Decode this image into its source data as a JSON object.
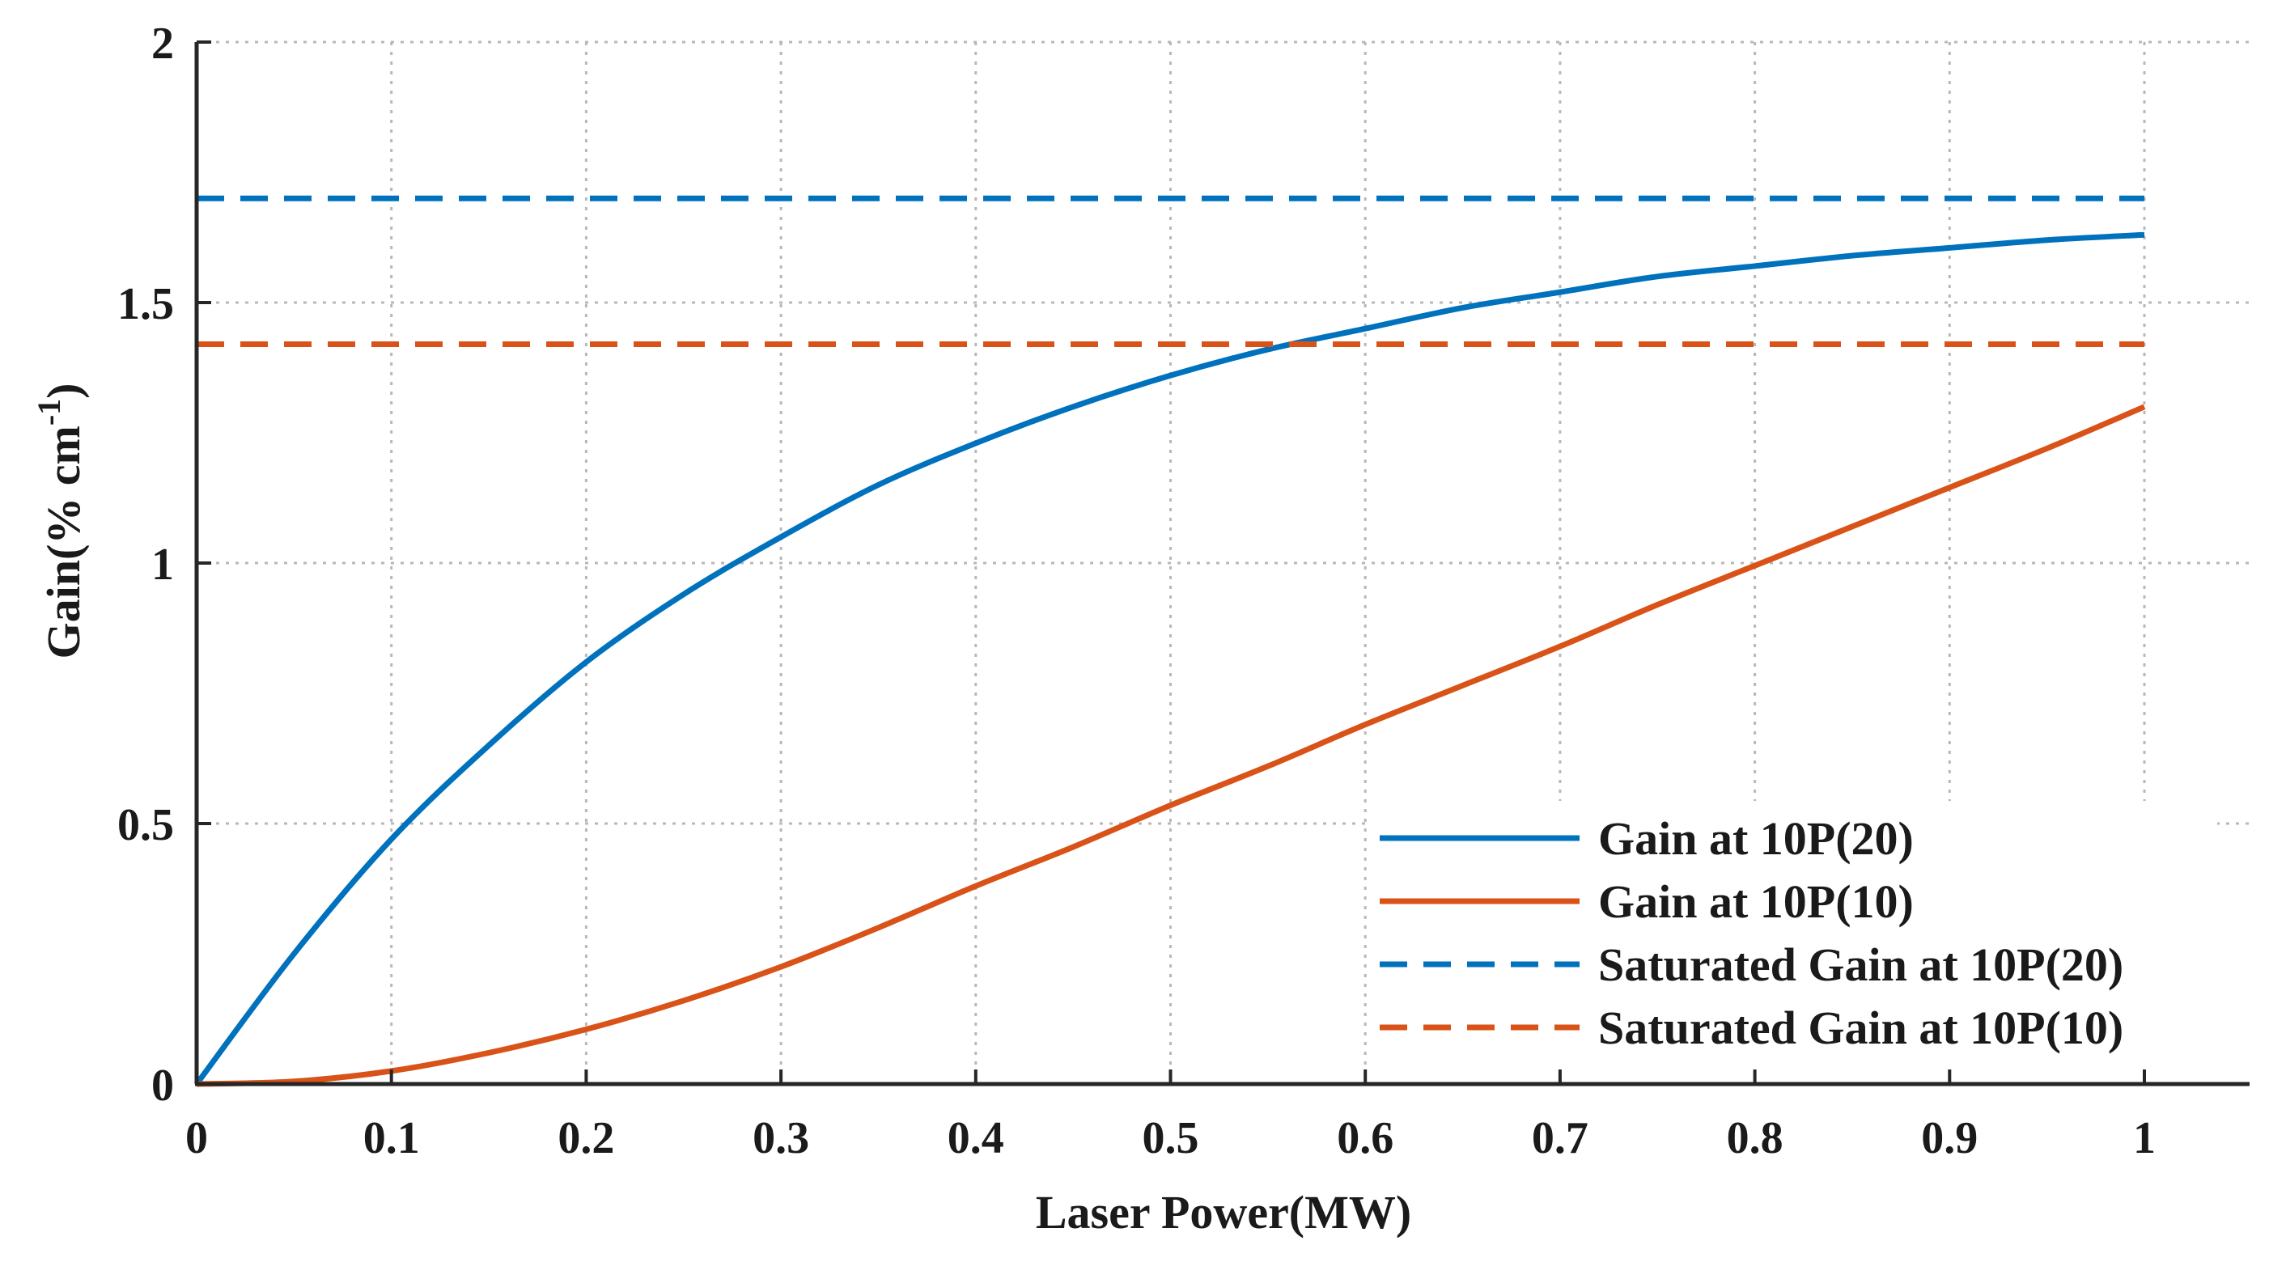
{
  "chart_data": {
    "type": "line",
    "title": "",
    "xlabel": "Laser Power(MW)",
    "ylabel": {
      "main": "Gain(% cm",
      "superscript": "-1",
      "close": ")"
    },
    "xlim": [
      0,
      1
    ],
    "ylim": [
      0,
      2
    ],
    "xticks": [
      0,
      0.1,
      0.2,
      0.3,
      0.4,
      0.5,
      0.6,
      0.7,
      0.8,
      0.9,
      1
    ],
    "xtick_labels": [
      "0",
      "0.1",
      "0.2",
      "0.3",
      "0.4",
      "0.5",
      "0.6",
      "0.7",
      "0.8",
      "0.9",
      "1"
    ],
    "yticks": [
      0,
      0.5,
      1,
      1.5,
      2
    ],
    "ytick_labels": [
      "0",
      "0.5",
      "1",
      "1.5",
      "2"
    ],
    "grid": true,
    "legend_position": "bottom-right",
    "x": [
      0,
      0.05,
      0.1,
      0.15,
      0.2,
      0.25,
      0.3,
      0.35,
      0.4,
      0.45,
      0.5,
      0.55,
      0.6,
      0.65,
      0.7,
      0.75,
      0.8,
      0.85,
      0.9,
      0.95,
      1
    ],
    "series": [
      {
        "name": "Gain at 10P(20)",
        "color": "#0072BD",
        "style": "solid",
        "values": [
          0,
          0.25,
          0.47,
          0.65,
          0.81,
          0.94,
          1.05,
          1.15,
          1.23,
          1.3,
          1.36,
          1.41,
          1.45,
          1.49,
          1.52,
          1.55,
          1.57,
          1.59,
          1.605,
          1.62,
          1.63
        ]
      },
      {
        "name": "Gain at 10P(10)",
        "color": "#D95319",
        "style": "solid",
        "values": [
          0,
          0.005,
          0.025,
          0.06,
          0.105,
          0.16,
          0.225,
          0.3,
          0.38,
          0.455,
          0.535,
          0.61,
          0.69,
          0.765,
          0.84,
          0.92,
          0.995,
          1.07,
          1.145,
          1.22,
          1.3
        ]
      },
      {
        "name": "Saturated Gain at 10P(20)",
        "color": "#0072BD",
        "style": "dashed",
        "constant": 1.7
      },
      {
        "name": "Saturated Gain at 10P(10)",
        "color": "#D95319",
        "style": "dashed",
        "constant": 1.42
      }
    ]
  }
}
